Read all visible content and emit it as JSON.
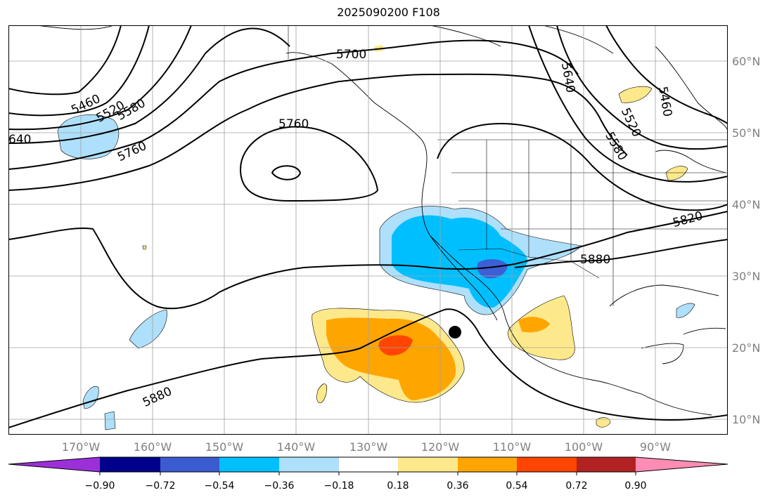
{
  "title": "2025090200 F108",
  "map": {
    "lon_labels": [
      "170°W",
      "160°W",
      "150°W",
      "140°W",
      "130°W",
      "120°W",
      "110°W",
      "100°W",
      "90°W"
    ],
    "lat_labels": [
      "60°N",
      "50°N",
      "40°N",
      "30°N",
      "20°N",
      "10°N"
    ],
    "contour_labels": [
      "5700",
      "5760",
      "5460",
      "5520",
      "5580",
      "640",
      "5760",
      "5640",
      "5460",
      "5520",
      "5580",
      "5820",
      "5880",
      "5880"
    ],
    "colors": {
      "light_blue": "#aee0fb",
      "blue": "#00bfff",
      "royal_blue": "#3d5fd6",
      "light_yellow": "#fde98b",
      "orange": "#ffa500",
      "red_orange": "#ff4500",
      "grid": "#a0a0a0"
    }
  },
  "colorbar": {
    "colors": [
      "#9b30d9",
      "#00008b",
      "#3b5bd0",
      "#00bfff",
      "#aee0fb",
      "#ffffff",
      "#fde98b",
      "#ffa500",
      "#ff4500",
      "#b22222",
      "#ff8cb4"
    ],
    "tick_labels": [
      "−0.90",
      "−0.72",
      "−0.54",
      "−0.36",
      "−0.18",
      "0.18",
      "0.36",
      "0.54",
      "0.72",
      "0.90"
    ]
  }
}
